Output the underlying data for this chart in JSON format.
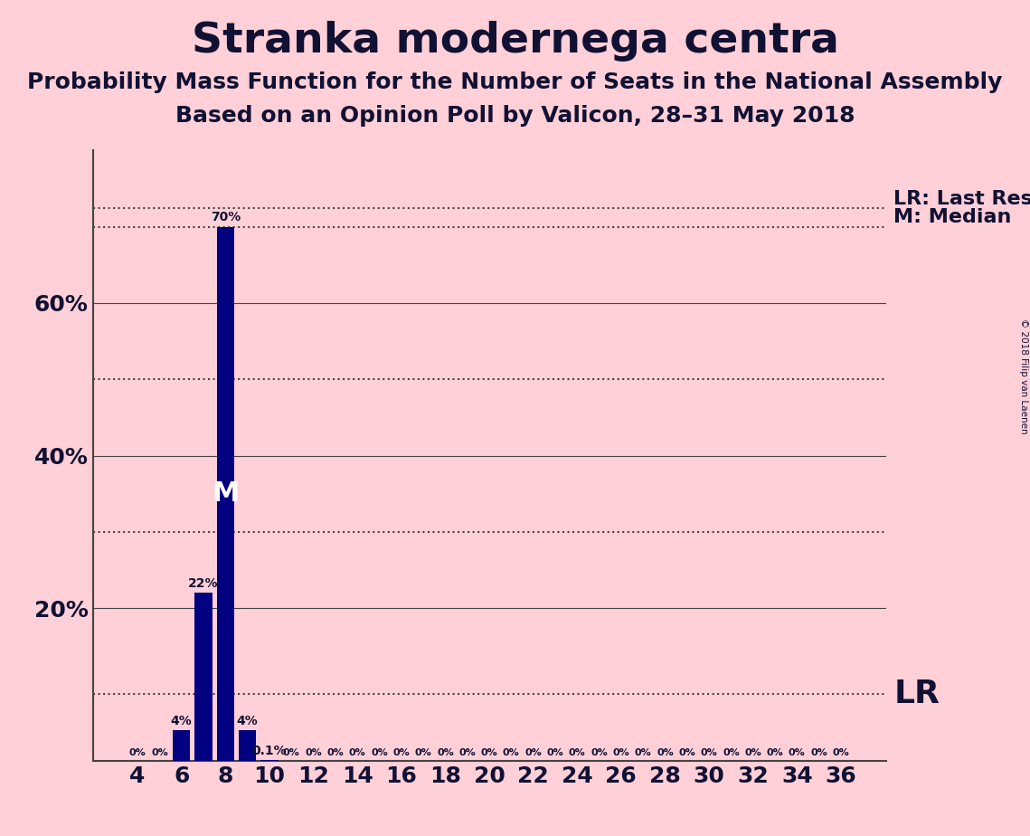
{
  "title": "Stranka modernega centra",
  "subtitle1": "Probability Mass Function for the Number of Seats in the National Assembly",
  "subtitle2": "Based on an Opinion Poll by Valicon, 28–31 May 2018",
  "copyright": "© 2018 Filip van Laenen",
  "background_color": "#FFD0D8",
  "bar_color": "#000080",
  "seats": [
    4,
    5,
    6,
    7,
    8,
    9,
    10,
    11,
    12,
    13,
    14,
    15,
    16,
    17,
    18,
    19,
    20,
    21,
    22,
    23,
    24,
    25,
    26,
    27,
    28,
    29,
    30,
    31,
    32,
    33,
    34,
    35,
    36
  ],
  "probabilities": [
    0.0,
    0.0,
    0.04,
    0.22,
    0.7,
    0.04,
    0.001,
    0.0,
    0.0,
    0.0,
    0.0,
    0.0,
    0.0,
    0.0,
    0.0,
    0.0,
    0.0,
    0.0,
    0.0,
    0.0,
    0.0,
    0.0,
    0.0,
    0.0,
    0.0,
    0.0,
    0.0,
    0.0,
    0.0,
    0.0,
    0.0,
    0.0,
    0.0
  ],
  "median": 8,
  "last_result": 10,
  "lr_level": 0.088,
  "m_level": 0.7,
  "ylim": [
    0,
    0.8
  ],
  "yticks": [
    0.2,
    0.4,
    0.6
  ],
  "dotted_lines": [
    0.088,
    0.3,
    0.5,
    0.7,
    0.725
  ],
  "xticks": [
    4,
    6,
    8,
    10,
    12,
    14,
    16,
    18,
    20,
    22,
    24,
    26,
    28,
    30,
    32,
    34,
    36
  ],
  "bar_width": 0.8,
  "title_fontsize": 34,
  "subtitle_fontsize": 18,
  "tick_fontsize": 18,
  "bar_label_fontsize": 10,
  "annotation_fontsize": 16,
  "lr_label_fontsize": 26,
  "text_color": "#111133"
}
